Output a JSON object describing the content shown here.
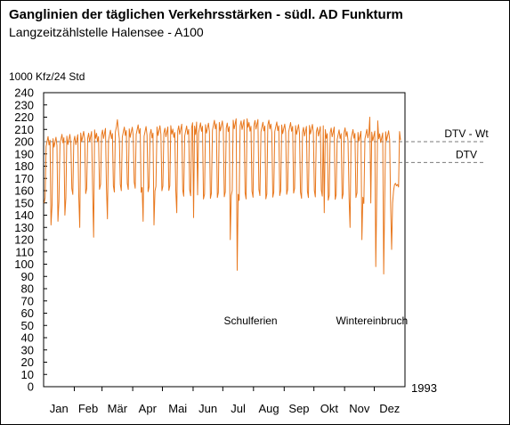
{
  "chart_data": {
    "type": "line",
    "title": "Ganglinien der täglichen Verkehrsstärken - südl. AD Funkturm",
    "subtitle": "Langzeitzählstelle Halensee - A100",
    "ylabel": "1000 Kfz/24 Std",
    "year_label": "1993",
    "ylim": [
      0,
      240
    ],
    "ytick_step": 10,
    "yticks": [
      "0",
      "10",
      "20",
      "30",
      "40",
      "50",
      "60",
      "70",
      "80",
      "90",
      "100",
      "110",
      "120",
      "130",
      "140",
      "150",
      "160",
      "170",
      "180",
      "190",
      "200",
      "210",
      "220",
      "230",
      "240"
    ],
    "months": [
      "Jan",
      "Feb",
      "Mär",
      "Apr",
      "Mai",
      "Jun",
      "Jul",
      "Aug",
      "Sep",
      "Okt",
      "Nov",
      "Dez"
    ],
    "reference_lines": [
      {
        "label": "DTV - Wt",
        "value": 200
      },
      {
        "label": "DTV",
        "value": 183
      }
    ],
    "annotations": [
      {
        "text": "Schulferien",
        "month": "Jul"
      },
      {
        "text": "Wintereinbruch",
        "month": "Nov"
      }
    ],
    "series": [
      {
        "color": "#e8781e",
        "start_day": 1,
        "end_day": 361,
        "weekly_pattern": [
          0.0,
          0.0,
          1.0,
          1.0,
          1.0,
          1.0,
          1.0
        ],
        "weekday_base": [
          200,
          201,
          203,
          205,
          207,
          209,
          208,
          208,
          210,
          212,
          213,
          214,
          213,
          212,
          210,
          209,
          207,
          206,
          205,
          204,
          203
        ],
        "weekend_base": [
          150,
          155,
          160,
          162,
          163,
          163,
          162,
          160,
          158,
          157,
          156,
          156,
          157,
          158,
          158,
          157,
          156,
          155,
          153,
          152,
          150
        ],
        "dips": [
          {
            "day": 8,
            "value": 132
          },
          {
            "day": 15,
            "value": 135
          },
          {
            "day": 22,
            "value": 140
          },
          {
            "day": 37,
            "value": 130
          },
          {
            "day": 51,
            "value": 122
          },
          {
            "day": 65,
            "value": 137
          },
          {
            "day": 101,
            "value": 135
          },
          {
            "day": 112,
            "value": 132
          },
          {
            "day": 135,
            "value": 142
          },
          {
            "day": 152,
            "value": 138
          },
          {
            "day": 189,
            "value": 120
          },
          {
            "day": 196,
            "value": 95
          },
          {
            "day": 284,
            "value": 142
          },
          {
            "day": 310,
            "value": 130
          },
          {
            "day": 322,
            "value": 120
          },
          {
            "day": 336,
            "value": 98
          },
          {
            "day": 344,
            "value": 92
          },
          {
            "day": 352,
            "value": 112
          }
        ],
        "peaks": [
          {
            "day": 75,
            "value": 218
          },
          {
            "day": 155,
            "value": 216
          },
          {
            "day": 330,
            "value": 220
          },
          {
            "day": 338,
            "value": 217
          }
        ],
        "end_values": [
          {
            "day": 353,
            "value": 150
          },
          {
            "day": 354,
            "value": 160
          },
          {
            "day": 355,
            "value": 165
          },
          {
            "day": 356,
            "value": 166
          },
          {
            "day": 357,
            "value": 164
          },
          {
            "day": 358,
            "value": 165
          },
          {
            "day": 359,
            "value": 163
          }
        ]
      }
    ]
  }
}
